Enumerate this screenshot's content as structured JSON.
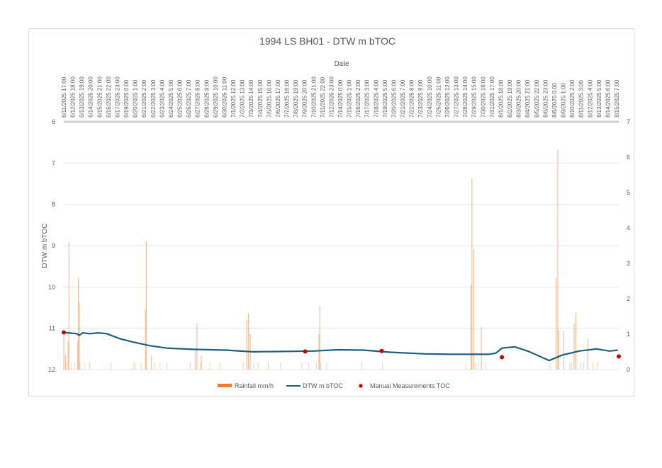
{
  "chart_data": {
    "type": "bar+line+scatter",
    "title": "1994 LS BH01 - DTW m bTOC",
    "xlabel": "Date",
    "ylabel": "DTW m bTOC",
    "x_axis_position": "top",
    "y_left": {
      "label": "DTW m bTOC",
      "range": [
        6,
        12
      ],
      "inverted": true,
      "ticks": [
        6,
        7,
        8,
        9,
        10,
        11,
        12
      ]
    },
    "y_right": {
      "label": "",
      "range": [
        0,
        7
      ],
      "ticks": [
        0,
        1,
        2,
        3,
        4,
        5,
        6,
        7
      ]
    },
    "grid": true,
    "legend_position": "bottom",
    "categories": [
      "6/11/2025 17:00",
      "6/12/2025 18:00",
      "6/13/2025 19:00",
      "6/14/2025 20:00",
      "6/15/2025 21:00",
      "6/16/2025 22:00",
      "6/17/2025 23:00",
      "6/19/2025 0:00",
      "6/20/2025 1:00",
      "6/21/2025 2:00",
      "6/22/2025 3:00",
      "6/23/2025 4:00",
      "6/24/2025 5:00",
      "6/25/2025 6:00",
      "6/26/2025 7:00",
      "6/27/2025 8:00",
      "6/28/2025 9:00",
      "6/29/2025 10:00",
      "6/30/2025 11:00",
      "7/1/2025 12:00",
      "7/2/2025 13:00",
      "7/3/2025 14:00",
      "7/4/2025 15:00",
      "7/5/2025 16:00",
      "7/6/2025 17:00",
      "7/7/2025 18:00",
      "7/8/2025 19:00",
      "7/9/2025 20:00",
      "7/10/2025 21:00",
      "7/11/2025 22:00",
      "7/12/2025 23:00",
      "7/14/2025 0:00",
      "7/15/2025 1:00",
      "7/16/2025 2:00",
      "7/17/2025 3:00",
      "7/18/2025 4:00",
      "7/19/2025 5:00",
      "7/20/2025 6:00",
      "7/21/2025 7:00",
      "7/22/2025 8:00",
      "7/23/2025 9:00",
      "7/24/2025 10:00",
      "7/25/2025 11:00",
      "7/26/2025 12:00",
      "7/27/2025 13:00",
      "7/28/2025 14:00",
      "7/29/2025 15:00",
      "7/30/2025 16:00",
      "7/31/2025 17:00",
      "8/1/2025 18:00",
      "8/2/2025 19:00",
      "8/3/2025 20:00",
      "8/4/2025 21:00",
      "8/5/2025 22:00",
      "8/6/2025 23:00",
      "8/8/2025 0:00",
      "8/9/2025 1:00",
      "8/10/2025 2:00",
      "8/11/2025 3:00",
      "8/12/2025 4:00",
      "8/13/2025 5:00",
      "8/14/2025 6:00",
      "8/15/2025 7:00"
    ],
    "series": [
      {
        "name": "Rainfall mm/h",
        "type": "bar",
        "axis": "right",
        "color": "#ED7D31",
        "note": "Approximate peak values (mm/h) at approximate day positions",
        "events": [
          {
            "day": 0.0,
            "value": 1.0
          },
          {
            "day": 0.2,
            "value": 0.4
          },
          {
            "day": 0.6,
            "value": 3.6
          },
          {
            "day": 0.5,
            "value": 0.8
          },
          {
            "day": 1.7,
            "value": 2.6
          },
          {
            "day": 1.8,
            "value": 1.9
          },
          {
            "day": 1.6,
            "value": 0.8
          },
          {
            "day": 9.6,
            "value": 3.6
          },
          {
            "day": 9.5,
            "value": 1.7
          },
          {
            "day": 10.2,
            "value": 0.4
          },
          {
            "day": 15.5,
            "value": 1.3
          },
          {
            "day": 15.3,
            "value": 0.6
          },
          {
            "day": 16.0,
            "value": 0.4
          },
          {
            "day": 21.3,
            "value": 1.4
          },
          {
            "day": 21.5,
            "value": 1.6
          },
          {
            "day": 21.7,
            "value": 1.0
          },
          {
            "day": 29.8,
            "value": 1.8
          },
          {
            "day": 29.7,
            "value": 1.0
          },
          {
            "day": 47.5,
            "value": 5.4
          },
          {
            "day": 47.7,
            "value": 3.4
          },
          {
            "day": 47.4,
            "value": 2.4
          },
          {
            "day": 48.6,
            "value": 1.2
          },
          {
            "day": 57.3,
            "value": 2.6
          },
          {
            "day": 57.5,
            "value": 6.2
          },
          {
            "day": 57.6,
            "value": 1.1
          },
          {
            "day": 58.2,
            "value": 1.1
          },
          {
            "day": 59.6,
            "value": 1.6
          },
          {
            "day": 59.4,
            "value": 1.3
          },
          {
            "day": 61.0,
            "value": 0.9
          }
        ]
      },
      {
        "name": "DTW m bTOC",
        "type": "line",
        "axis": "left",
        "color": "#1F5F7F",
        "note": "Approximate depth-to-water (m) by day offset from 6/11/2025",
        "points": [
          {
            "day": 0,
            "value": 11.1
          },
          {
            "day": 1.5,
            "value": 11.13
          },
          {
            "day": 1.8,
            "value": 11.17
          },
          {
            "day": 2.2,
            "value": 11.11
          },
          {
            "day": 3.0,
            "value": 11.13
          },
          {
            "day": 4.0,
            "value": 11.11
          },
          {
            "day": 5.0,
            "value": 11.13
          },
          {
            "day": 6.5,
            "value": 11.25
          },
          {
            "day": 8.0,
            "value": 11.33
          },
          {
            "day": 10.0,
            "value": 11.42
          },
          {
            "day": 12.0,
            "value": 11.48
          },
          {
            "day": 15.0,
            "value": 11.51
          },
          {
            "day": 19.0,
            "value": 11.53
          },
          {
            "day": 22.0,
            "value": 11.57
          },
          {
            "day": 26.0,
            "value": 11.56
          },
          {
            "day": 29.0,
            "value": 11.55
          },
          {
            "day": 32.0,
            "value": 11.52
          },
          {
            "day": 35.0,
            "value": 11.53
          },
          {
            "day": 38.0,
            "value": 11.58
          },
          {
            "day": 42.0,
            "value": 11.62
          },
          {
            "day": 45.0,
            "value": 11.63
          },
          {
            "day": 48.0,
            "value": 11.63
          },
          {
            "day": 49.5,
            "value": 11.63
          },
          {
            "day": 50.3,
            "value": 11.6
          },
          {
            "day": 51.0,
            "value": 11.48
          },
          {
            "day": 52.5,
            "value": 11.45
          },
          {
            "day": 54.0,
            "value": 11.55
          },
          {
            "day": 56.5,
            "value": 11.78
          },
          {
            "day": 58.0,
            "value": 11.65
          },
          {
            "day": 60.0,
            "value": 11.55
          },
          {
            "day": 62.0,
            "value": 11.5
          },
          {
            "day": 63.5,
            "value": 11.55
          },
          {
            "day": 64.5,
            "value": 11.53
          }
        ]
      },
      {
        "name": "Manual Measurements TOC",
        "type": "scatter",
        "axis": "left",
        "color": "#C00000",
        "points": [
          {
            "date": "6/11/2025",
            "value": 11.1
          },
          {
            "date": "7/9/2025",
            "value": 11.56
          },
          {
            "date": "7/18/2025",
            "value": 11.55
          },
          {
            "date": "8/1/2025",
            "value": 11.7
          },
          {
            "date": "8/15/2025",
            "value": 11.68
          }
        ]
      }
    ]
  },
  "legend": {
    "rainfall": "Rainfall mm/h",
    "dtw": "DTW m bTOC",
    "manual": "Manual Measurements TOC"
  },
  "colors": {
    "rain": "#ED7D31",
    "line": "#1F5F7F",
    "manual": "#C00000",
    "grid": "#D9D9D9",
    "text": "#595959"
  }
}
